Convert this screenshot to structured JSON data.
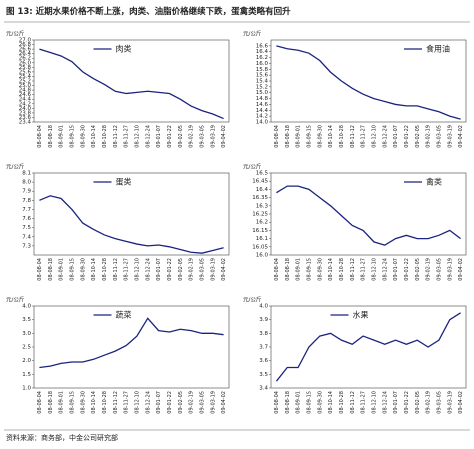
{
  "title": "图 13: 近期水果价格不断上涨，肉类、油脂价格继续下跌，蛋禽类略有回升",
  "source": "资料来源：商务部，中金公司研究部",
  "chart_data": [
    {
      "type": "line",
      "y_label": "元/公斤",
      "legend": "upper center",
      "categories": [
        "08-08-04",
        "08-08-18",
        "08-09-01",
        "08-09-15",
        "08-09-30",
        "08-10-14",
        "08-10-28",
        "08-11-12",
        "08-11-27",
        "08-12-10",
        "08-12-24",
        "09-01-07",
        "09-01-22",
        "09-02-05",
        "09-02-19",
        "09-03-05",
        "09-03-19",
        "09-04-02"
      ],
      "series": [
        {
          "name": "肉类",
          "color": "#1a237e",
          "values": [
            26.6,
            26.45,
            26.3,
            26.05,
            25.6,
            25.3,
            25.05,
            24.75,
            24.65,
            24.7,
            24.75,
            24.7,
            24.65,
            24.4,
            24.1,
            23.9,
            23.75,
            23.55
          ]
        }
      ],
      "ylim": [
        23.4,
        27.0
      ],
      "yticks": [
        23.4,
        23.6,
        23.8,
        24.0,
        24.2,
        24.4,
        24.6,
        24.8,
        25.0,
        25.2,
        25.4,
        25.6,
        25.8,
        26.0,
        26.2,
        26.4,
        26.6,
        26.8,
        27.0
      ]
    },
    {
      "type": "line",
      "y_label": "元/公斤",
      "legend": "upper right",
      "categories": [
        "08-08-04",
        "08-08-18",
        "08-09-01",
        "08-09-15",
        "08-09-30",
        "08-10-14",
        "08-10-28",
        "08-11-12",
        "08-11-27",
        "08-12-10",
        "08-12-24",
        "09-01-07",
        "09-01-22",
        "09-02-05",
        "09-02-19",
        "09-03-05",
        "09-03-19",
        "09-04-02"
      ],
      "series": [
        {
          "name": "食用油",
          "color": "#1a237e",
          "values": [
            16.6,
            16.5,
            16.45,
            16.35,
            16.1,
            15.7,
            15.4,
            15.15,
            14.95,
            14.8,
            14.7,
            14.6,
            14.55,
            14.55,
            14.45,
            14.35,
            14.2,
            14.1
          ]
        }
      ],
      "ylim": [
        14.0,
        16.8
      ],
      "yticks": [
        14.0,
        14.2,
        14.4,
        14.6,
        14.8,
        15.0,
        15.2,
        15.4,
        15.6,
        15.8,
        16.0,
        16.2,
        16.4,
        16.6
      ]
    },
    {
      "type": "line",
      "y_label": "元/公斤",
      "legend": "upper center",
      "categories": [
        "08-08-04",
        "08-08-18",
        "08-09-01",
        "08-09-15",
        "08-09-30",
        "08-10-14",
        "08-10-28",
        "08-11-12",
        "08-11-27",
        "08-12-10",
        "08-12-24",
        "09-01-07",
        "09-01-22",
        "09-02-05",
        "09-02-19",
        "09-03-05",
        "09-03-19",
        "09-04-02"
      ],
      "series": [
        {
          "name": "蛋类",
          "color": "#1a237e",
          "values": [
            7.8,
            7.85,
            7.82,
            7.7,
            7.55,
            7.48,
            7.42,
            7.38,
            7.35,
            7.32,
            7.3,
            7.31,
            7.29,
            7.26,
            7.23,
            7.22,
            7.25,
            7.28
          ]
        }
      ],
      "ylim": [
        7.2,
        8.1
      ],
      "yticks": [
        7.3,
        7.4,
        7.5,
        7.6,
        7.7,
        7.8,
        7.9,
        8.0,
        8.1
      ]
    },
    {
      "type": "line",
      "y_label": "元/公斤",
      "legend": "upper right",
      "categories": [
        "08-08-04",
        "08-08-18",
        "08-09-01",
        "08-09-15",
        "08-09-30",
        "08-10-14",
        "08-10-28",
        "08-11-12",
        "08-11-27",
        "08-12-10",
        "08-12-24",
        "09-01-07",
        "09-01-22",
        "09-02-05",
        "09-02-19",
        "09-03-05",
        "09-03-19",
        "09-04-02"
      ],
      "series": [
        {
          "name": "禽类",
          "color": "#1a237e",
          "values": [
            16.38,
            16.42,
            16.42,
            16.4,
            16.35,
            16.3,
            16.24,
            16.18,
            16.15,
            16.08,
            16.06,
            16.1,
            16.12,
            16.1,
            16.1,
            16.12,
            16.15,
            16.1
          ]
        }
      ],
      "ylim": [
        16.0,
        16.5
      ],
      "yticks": [
        16.0,
        16.05,
        16.1,
        16.15,
        16.2,
        16.25,
        16.3,
        16.35,
        16.4,
        16.45,
        16.5
      ]
    },
    {
      "type": "line",
      "y_label": "元/公斤",
      "legend": "upper center",
      "categories": [
        "08-08-04",
        "08-08-18",
        "08-09-01",
        "08-09-15",
        "08-09-30",
        "08-10-14",
        "08-10-28",
        "08-11-12",
        "08-11-27",
        "08-12-10",
        "08-12-24",
        "09-01-07",
        "09-01-22",
        "09-02-05",
        "09-02-19",
        "09-03-05",
        "09-03-19",
        "09-04-02"
      ],
      "series": [
        {
          "name": "蔬菜",
          "color": "#1a237e",
          "values": [
            1.75,
            1.8,
            1.9,
            1.95,
            1.95,
            2.05,
            2.2,
            2.35,
            2.55,
            2.9,
            3.55,
            3.1,
            3.05,
            3.15,
            3.1,
            3.0,
            3.0,
            2.95
          ]
        }
      ],
      "ylim": [
        1.0,
        4.0
      ],
      "yticks": [
        1.0,
        1.5,
        2.0,
        2.5,
        3.0,
        3.5,
        4.0
      ]
    },
    {
      "type": "line",
      "y_label": "元/公斤",
      "legend": "upper center",
      "categories": [
        "08-08-04",
        "08-08-18",
        "08-09-01",
        "08-09-15",
        "08-09-30",
        "08-10-14",
        "08-10-28",
        "08-11-12",
        "08-11-27",
        "08-12-10",
        "08-12-24",
        "09-01-07",
        "09-01-22",
        "09-02-05",
        "09-02-19",
        "09-03-05",
        "09-03-19",
        "09-04-02"
      ],
      "series": [
        {
          "name": "水果",
          "color": "#1a237e",
          "values": [
            3.45,
            3.55,
            3.55,
            3.7,
            3.78,
            3.8,
            3.75,
            3.72,
            3.78,
            3.75,
            3.72,
            3.75,
            3.72,
            3.75,
            3.7,
            3.75,
            3.9,
            3.95
          ]
        }
      ],
      "ylim": [
        3.4,
        4.0
      ],
      "yticks": [
        3.4,
        3.5,
        3.6,
        3.7,
        3.8,
        3.9,
        4.0
      ]
    }
  ]
}
